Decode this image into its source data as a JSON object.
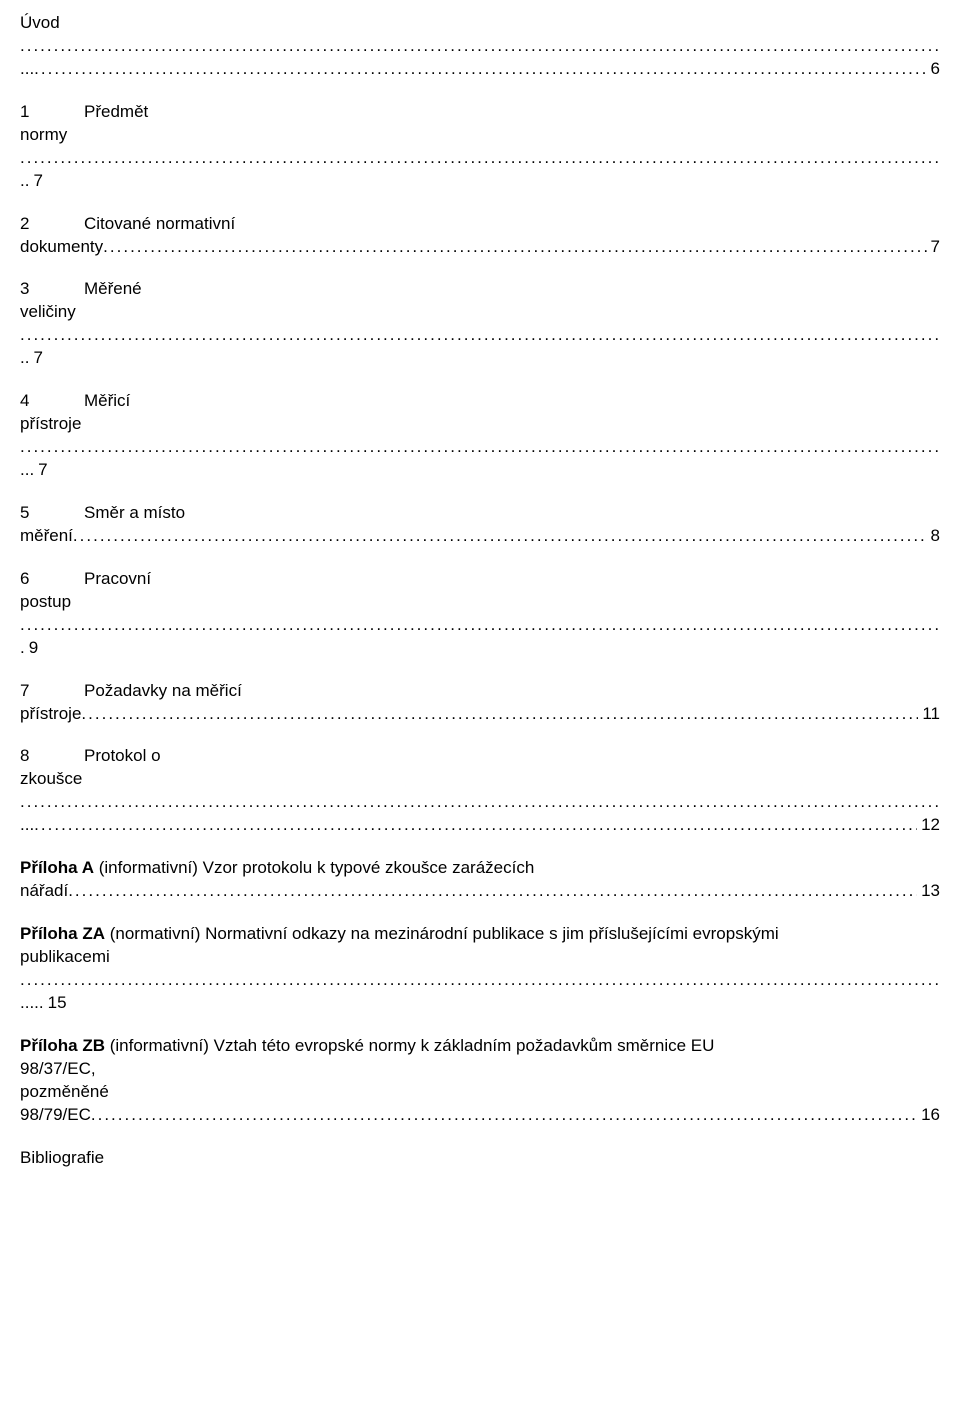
{
  "dot_char": ".",
  "dot_repeat": 300,
  "entries": [
    {
      "num": "",
      "label": "Úvod",
      "cont": "",
      "page": "6",
      "style": "two_dotlines_then_page",
      "lead": "..."
    },
    {
      "num": "1",
      "label": "Předmět",
      "cont": "normy",
      "page": "7",
      "style": "numbered_two_line",
      "lead": ".."
    },
    {
      "num": "2",
      "label": "Citované normativní",
      "cont": "dokumenty",
      "page": "7",
      "style": "numbered_two_line_trail",
      "lead": "..."
    },
    {
      "num": "3",
      "label": "Měřené",
      "cont": "veličiny",
      "page": "7",
      "style": "numbered_two_line",
      "lead": ".."
    },
    {
      "num": "4",
      "label": "Měřicí",
      "cont": "přístroje",
      "page": "7",
      "style": "numbered_two_line",
      "lead": "..."
    },
    {
      "num": "5",
      "label": "Směr a místo",
      "cont": "měření",
      "page": "8",
      "style": "numbered_two_line_trail",
      "lead": "..."
    },
    {
      "num": "6",
      "label": "Pracovní",
      "cont": "postup",
      "page": "9",
      "style": "numbered_two_line",
      "lead": "."
    },
    {
      "num": "7",
      "label": "Požadavky na měřicí",
      "cont": "přístroje",
      "page": "11",
      "style": "numbered_two_line_trail",
      "lead": "..."
    },
    {
      "num": "8",
      "label": "Protokol o",
      "cont": "zkoušce",
      "page": "12",
      "style": "numbered_two_line",
      "lead": "..."
    }
  ],
  "annexA": {
    "bold": "Příloha A",
    "rest_line1": " (informativní) Vzor protokolu k typové zkoušce zarážecích",
    "line2_lead": "nářadí",
    "page": "13"
  },
  "annexZA": {
    "bold": "Příloha ZA",
    "rest_line1": " (normativní) Normativní odkazy na mezinárodní publikace s jim příslušejícími evropskými",
    "line2": "publikacemi",
    "page": "15",
    "page_lead": "....."
  },
  "annexZB": {
    "bold": "Příloha ZB",
    "rest_line1": " (informativní) Vztah této evropské normy k základním požadavkům směrnice EU",
    "line2": "98/37/EC,",
    "line3": "pozměněné",
    "line4_lead": "98/79/EC",
    "page": "16"
  },
  "biblio": {
    "label": "Bibliografie"
  }
}
